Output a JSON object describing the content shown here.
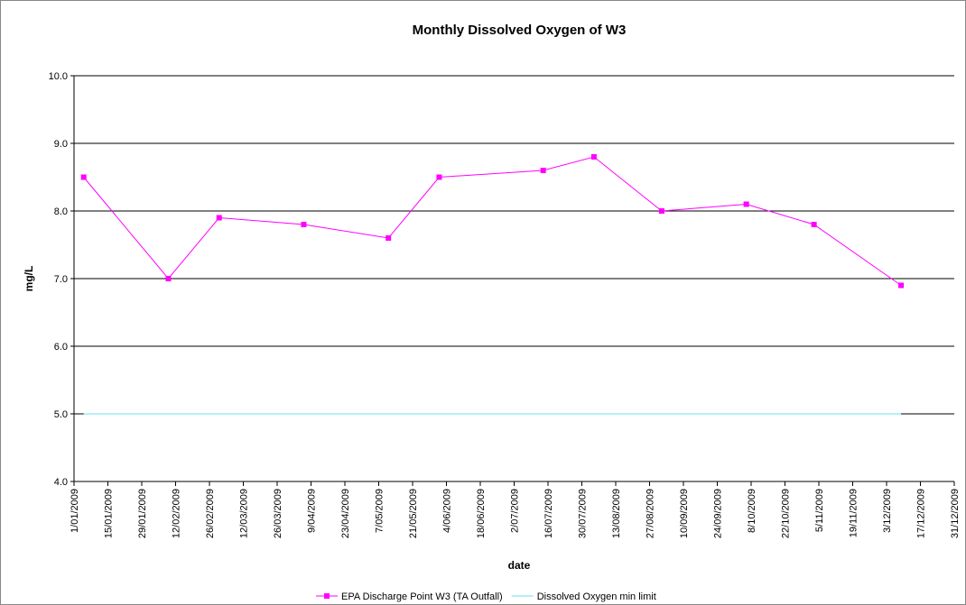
{
  "chart_data": {
    "type": "line",
    "title": "Monthly Dissolved Oxygen of W3",
    "x_label": "date",
    "y_label": "mg/L",
    "x": [
      "2009-01-05",
      "2009-02-09",
      "2009-03-02",
      "2009-04-06",
      "2009-05-11",
      "2009-06-01",
      "2009-07-14",
      "2009-08-04",
      "2009-09-01",
      "2009-10-06",
      "2009-11-03",
      "2009-12-09"
    ],
    "series": [
      {
        "name": "EPA Discharge Point W3 (TA Outfall)",
        "color": "#ff00ff",
        "values": [
          8.5,
          7.0,
          7.9,
          7.8,
          7.6,
          8.5,
          8.6,
          8.8,
          8.0,
          8.1,
          7.8,
          6.9
        ]
      },
      {
        "name": "Dissolved Oxygen min limit",
        "color": "#66e0f0",
        "values": [
          5.0,
          null,
          null,
          null,
          null,
          null,
          null,
          null,
          null,
          null,
          null,
          5.0
        ]
      }
    ],
    "xlim": [
      "2009-01-01",
      "2009-12-31"
    ],
    "xticks": [
      {
        "value": "2009-01-01",
        "label": "1/01/2009"
      },
      {
        "value": "2009-01-15",
        "label": "15/01/2009"
      },
      {
        "value": "2009-01-29",
        "label": "29/01/2009"
      },
      {
        "value": "2009-02-12",
        "label": "12/02/2009"
      },
      {
        "value": "2009-02-26",
        "label": "26/02/2009"
      },
      {
        "value": "2009-03-12",
        "label": "12/03/2009"
      },
      {
        "value": "2009-03-26",
        "label": "26/03/2009"
      },
      {
        "value": "2009-04-09",
        "label": "9/04/2009"
      },
      {
        "value": "2009-04-23",
        "label": "23/04/2009"
      },
      {
        "value": "2009-05-07",
        "label": "7/05/2009"
      },
      {
        "value": "2009-05-21",
        "label": "21/05/2009"
      },
      {
        "value": "2009-06-04",
        "label": "4/06/2009"
      },
      {
        "value": "2009-06-18",
        "label": "18/06/2009"
      },
      {
        "value": "2009-07-02",
        "label": "2/07/2009"
      },
      {
        "value": "2009-07-16",
        "label": "16/07/2009"
      },
      {
        "value": "2009-07-30",
        "label": "30/07/2009"
      },
      {
        "value": "2009-08-13",
        "label": "13/08/2009"
      },
      {
        "value": "2009-08-27",
        "label": "27/08/2009"
      },
      {
        "value": "2009-09-10",
        "label": "10/09/2009"
      },
      {
        "value": "2009-09-24",
        "label": "24/09/2009"
      },
      {
        "value": "2009-10-08",
        "label": "8/10/2009"
      },
      {
        "value": "2009-10-22",
        "label": "22/10/2009"
      },
      {
        "value": "2009-11-05",
        "label": "5/11/2009"
      },
      {
        "value": "2009-11-19",
        "label": "19/11/2009"
      },
      {
        "value": "2009-12-03",
        "label": "3/12/2009"
      },
      {
        "value": "2009-12-17",
        "label": "17/12/2009"
      },
      {
        "value": "2009-12-31",
        "label": "31/12/2009"
      }
    ],
    "ylim": [
      4,
      10
    ],
    "yticks": [
      {
        "value": 4,
        "label": "4.0"
      },
      {
        "value": 5,
        "label": "5.0"
      },
      {
        "value": 6,
        "label": "6.0"
      },
      {
        "value": 7,
        "label": "7.0"
      },
      {
        "value": 8,
        "label": "8.0"
      },
      {
        "value": 9,
        "label": "9.0"
      },
      {
        "value": 10,
        "label": "10.0"
      }
    ],
    "grid": true,
    "legend": "bottom"
  }
}
